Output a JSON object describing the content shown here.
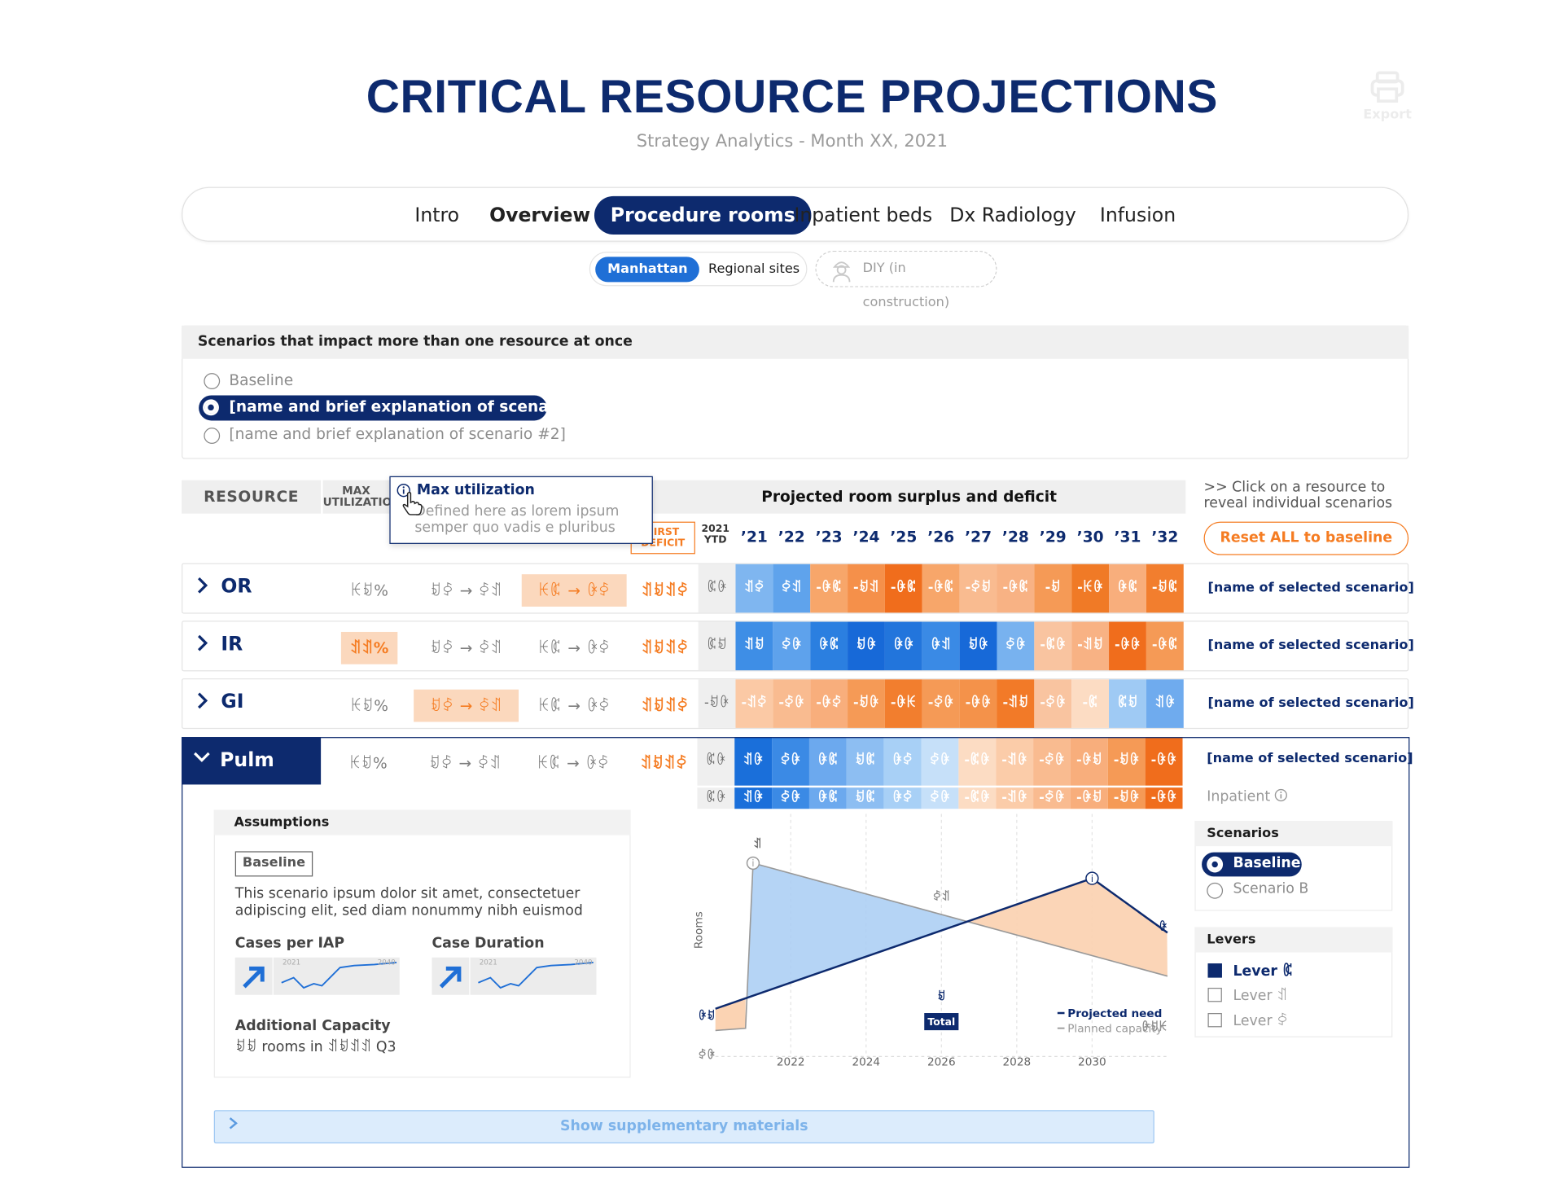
{
  "header": {
    "title": "CRITICAL RESOURCE PROJECTIONS",
    "subtitle": "Strategy Analytics - Month XX, 2021",
    "export_label": "Export"
  },
  "tabs": [
    {
      "label": "Intro"
    },
    {
      "label": "Overview"
    },
    {
      "label": "Procedure rooms"
    },
    {
      "label": "Inpatient beds"
    },
    {
      "label": "Dx Radiology"
    },
    {
      "label": "Infusion"
    }
  ],
  "subtabs": [
    {
      "label": "Manhattan"
    },
    {
      "label": "Regional sites"
    }
  ],
  "diy_label": "DIY (in construction)",
  "scenarios": {
    "heading": "Scenarios that impact more than one resource at once",
    "options": [
      {
        "label": "Baseline",
        "selected": false
      },
      {
        "label": "[name and brief explanation of scenario #",
        "selected": true
      },
      {
        "label": "[name and brief explanation of scenario #2]",
        "selected": false
      }
    ]
  },
  "table": {
    "resource_header": "RESOURCE",
    "max_header": "MAX UTILIZATION",
    "projected_header": "Projected room surplus and deficit",
    "first_deficit_header": "FIRST DEFICIT",
    "ytd_header": "2021 YTD",
    "years": [
      "’21",
      "’22",
      "’23",
      "’24",
      "’25",
      "’26",
      "’27",
      "’28",
      "’29",
      "’30",
      "’31",
      "’32"
    ],
    "click_hint_1": ">> Click on a resource to",
    "click_hint_2": "reveal individual scenarios",
    "reset_label": "Reset ALL to baseline",
    "arrow": "→",
    "rows": [
      {
        "name": "OR",
        "max": "ꀘꀂ%",
        "c1a": "ꀂꀆ",
        "c1b": "ꀆꀊ",
        "c2a": "ꀘꀇ",
        "c2b": "ꀖꀆ",
        "first_deficit": "ꀊꀂꀊꀆ",
        "ytd": "ꀇꀖ",
        "cells": [
          "ꀊꀆ",
          "ꀆꀊ",
          "-ꀖꀇ",
          "-ꀂꀊ",
          "-ꀖꀇ",
          "-ꀖꀇ",
          "-ꀆꀂ",
          "-ꀖꀇ",
          "-ꀂ",
          "-ꀘꀖ",
          "ꀖꀇ",
          "-ꀂꀇ"
        ],
        "colors": [
          "#7fb6f0",
          "#5fa3ec",
          "#f7a66a",
          "#f5904a",
          "#f06d1c",
          "#f7a66a",
          "#f9bb90",
          "#f8b284",
          "#f59a56",
          "#f07a26",
          "#f8ae7c",
          "#f27e2e"
        ],
        "scenario": "[name of selected scenario]"
      },
      {
        "name": "IR",
        "max": "ꀊꀊ%",
        "c1a": "ꀂꀆ",
        "c1b": "ꀆꀊ",
        "c2a": "ꀘꀇ",
        "c2b": "ꀖꀆ",
        "first_deficit": "ꀊꀂꀊꀆ",
        "ytd": "ꀇꀂ",
        "cells": [
          "ꀊꀂ",
          "ꀆꀖ",
          "ꀖꀇ",
          "ꀂꀖ",
          "ꀖꀖ",
          "ꀖꀊ",
          "ꀂꀖ",
          "ꀆꀖ",
          "-ꀇꀖ",
          "-ꀊꀂ",
          "-ꀖꀖ",
          "-ꀖꀇ"
        ],
        "colors": [
          "#3e8ee6",
          "#5ea2ec",
          "#2b7fe0",
          "#1769d8",
          "#2275dc",
          "#3a8ae5",
          "#1769d8",
          "#78b2ef",
          "#f9c4a0",
          "#f8b284",
          "#f06d1c",
          "#f59a56"
        ],
        "scenario": "[name of selected scenario]"
      },
      {
        "name": "GI",
        "max": "ꀘꀂ%",
        "c1a": "ꀂꀆ",
        "c1b": "ꀆꀊ",
        "c2a": "ꀘꀇ",
        "c2b": "ꀖꀆ",
        "first_deficit": "ꀊꀂꀊꀆ",
        "ytd": "-ꀂꀖ",
        "cells": [
          "-ꀊꀆ",
          "-ꀆꀖ",
          "-ꀖꀆ",
          "-ꀂꀖ",
          "-ꀖꀘ",
          "-ꀆꀖ",
          "-ꀖꀖ",
          "-ꀊꀂ",
          "-ꀆꀖ",
          "-ꀇ",
          "ꀇꀂ",
          "ꀊꀖ"
        ],
        "colors": [
          "#fbc9a5",
          "#f9bb90",
          "#f8ae7c",
          "#f59a56",
          "#f27e2e",
          "#f59a56",
          "#f4924a",
          "#f27a28",
          "#f9c4a0",
          "#fcdcc3",
          "#9fcaf4",
          "#6fabee"
        ],
        "scenario": "[name of selected scenario]"
      },
      {
        "name": "Pulm",
        "max": "ꀘꀂ%",
        "c1a": "ꀂꀆ",
        "c1b": "ꀆꀊ",
        "c2a": "ꀘꀇ",
        "c2b": "ꀖꀆ",
        "first_deficit": "ꀊꀂꀊꀆ",
        "ytd": "ꀇꀖ",
        "cells": [
          "ꀊꀖ",
          "ꀆꀖ",
          "ꀖꀇ",
          "ꀂꀇ",
          "ꀖꀆ",
          "ꀆꀖ",
          "-ꀇꀖ",
          "-ꀊꀖ",
          "-ꀆꀖ",
          "-ꀖꀂ",
          "-ꀂꀖ",
          "-ꀖꀖ"
        ],
        "colors": [
          "#1a6fda",
          "#3b8ae5",
          "#6ca9ee",
          "#8dbef2",
          "#a8d0f6",
          "#c6e0f9",
          "#fcdcc3",
          "#fbcca9",
          "#f9bb90",
          "#f8ae7c",
          "#f59a56",
          "#f06d1c"
        ],
        "scenario": "[name of selected scenario]"
      }
    ],
    "pulm_sub": {
      "ytd": "ꀇꀖ",
      "cells": [
        "ꀊꀖ",
        "ꀆꀖ",
        "ꀖꀇ",
        "ꀂꀇ",
        "ꀖꀆ",
        "ꀆꀖ",
        "-ꀇꀖ",
        "-ꀊꀖ",
        "-ꀆꀖ",
        "-ꀖꀂ",
        "-ꀂꀖ",
        "-ꀖꀖ"
      ],
      "colors": [
        "#1a6fda",
        "#3b8ae5",
        "#6ca9ee",
        "#8dbef2",
        "#a8d0f6",
        "#c6e0f9",
        "#fcdcc3",
        "#fbcca9",
        "#f9bb90",
        "#f8ae7c",
        "#f59a56",
        "#f06d1c"
      ],
      "label": "Inpatient"
    }
  },
  "tooltip": {
    "title": "Max utilization",
    "body": "Defined here as lorem ipsum semper quo vadis e pluribus"
  },
  "assumptions": {
    "heading": "Assumptions",
    "badge": "Baseline",
    "text": "This scenario ipsum dolor sit amet, consectetuer adipiscing elit, sed diam nonummy nibh euismod",
    "cases_title": "Cases per IAP",
    "duration_title": "Case Duration",
    "spark_start": "2021",
    "spark_end": "2040",
    "addcap_title": "Additional Capacity",
    "addcap_value": "ꀂꀂ rooms in ꀊꀂꀊꀊ Q3"
  },
  "chart_data": {
    "type": "area",
    "title": "",
    "ylabel": "Rooms",
    "xticks": [
      "2022",
      "2024",
      "2026",
      "2028",
      "2030"
    ],
    "xlim": [
      2020,
      2032
    ],
    "ylim": [
      0,
      10
    ],
    "series": [
      {
        "name": "Projected need",
        "x": [
          2020,
          2030,
          2032
        ],
        "values": [
          1.5,
          7.5,
          5.0
        ],
        "color": "#0d2a6e"
      },
      {
        "name": "Planned capacity",
        "x": [
          2020,
          2020.8,
          2021,
          2032
        ],
        "values": [
          0.5,
          0.6,
          8.2,
          3.0
        ],
        "color": "#999999"
      }
    ],
    "annotations": [
      "ꀊ",
      "ꀖꀂ",
      "ꀂ",
      "ꀖ",
      "ꀖꀂꀘ",
      "ꀆꀖ",
      "ꀆꀊ"
    ],
    "badge": "Total",
    "legend": [
      "Projected need",
      "Planned capacity"
    ]
  },
  "right_panel": {
    "scenarios_heading": "Scenarios",
    "scenario_options": [
      {
        "label": "Baseline",
        "selected": true
      },
      {
        "label": "Scenario B",
        "selected": false
      }
    ],
    "levers_heading": "Levers",
    "levers": [
      {
        "label": "Lever ꀇ",
        "checked": true
      },
      {
        "label": "Lever ꀊ",
        "checked": false
      },
      {
        "label": "Lever ꀆ",
        "checked": false
      }
    ]
  },
  "supplementary": {
    "label": "Show supplementary materials"
  },
  "colors": {
    "navy": "#0d2a6e",
    "orange": "#f57c22",
    "blue": "#1f6fd6"
  }
}
